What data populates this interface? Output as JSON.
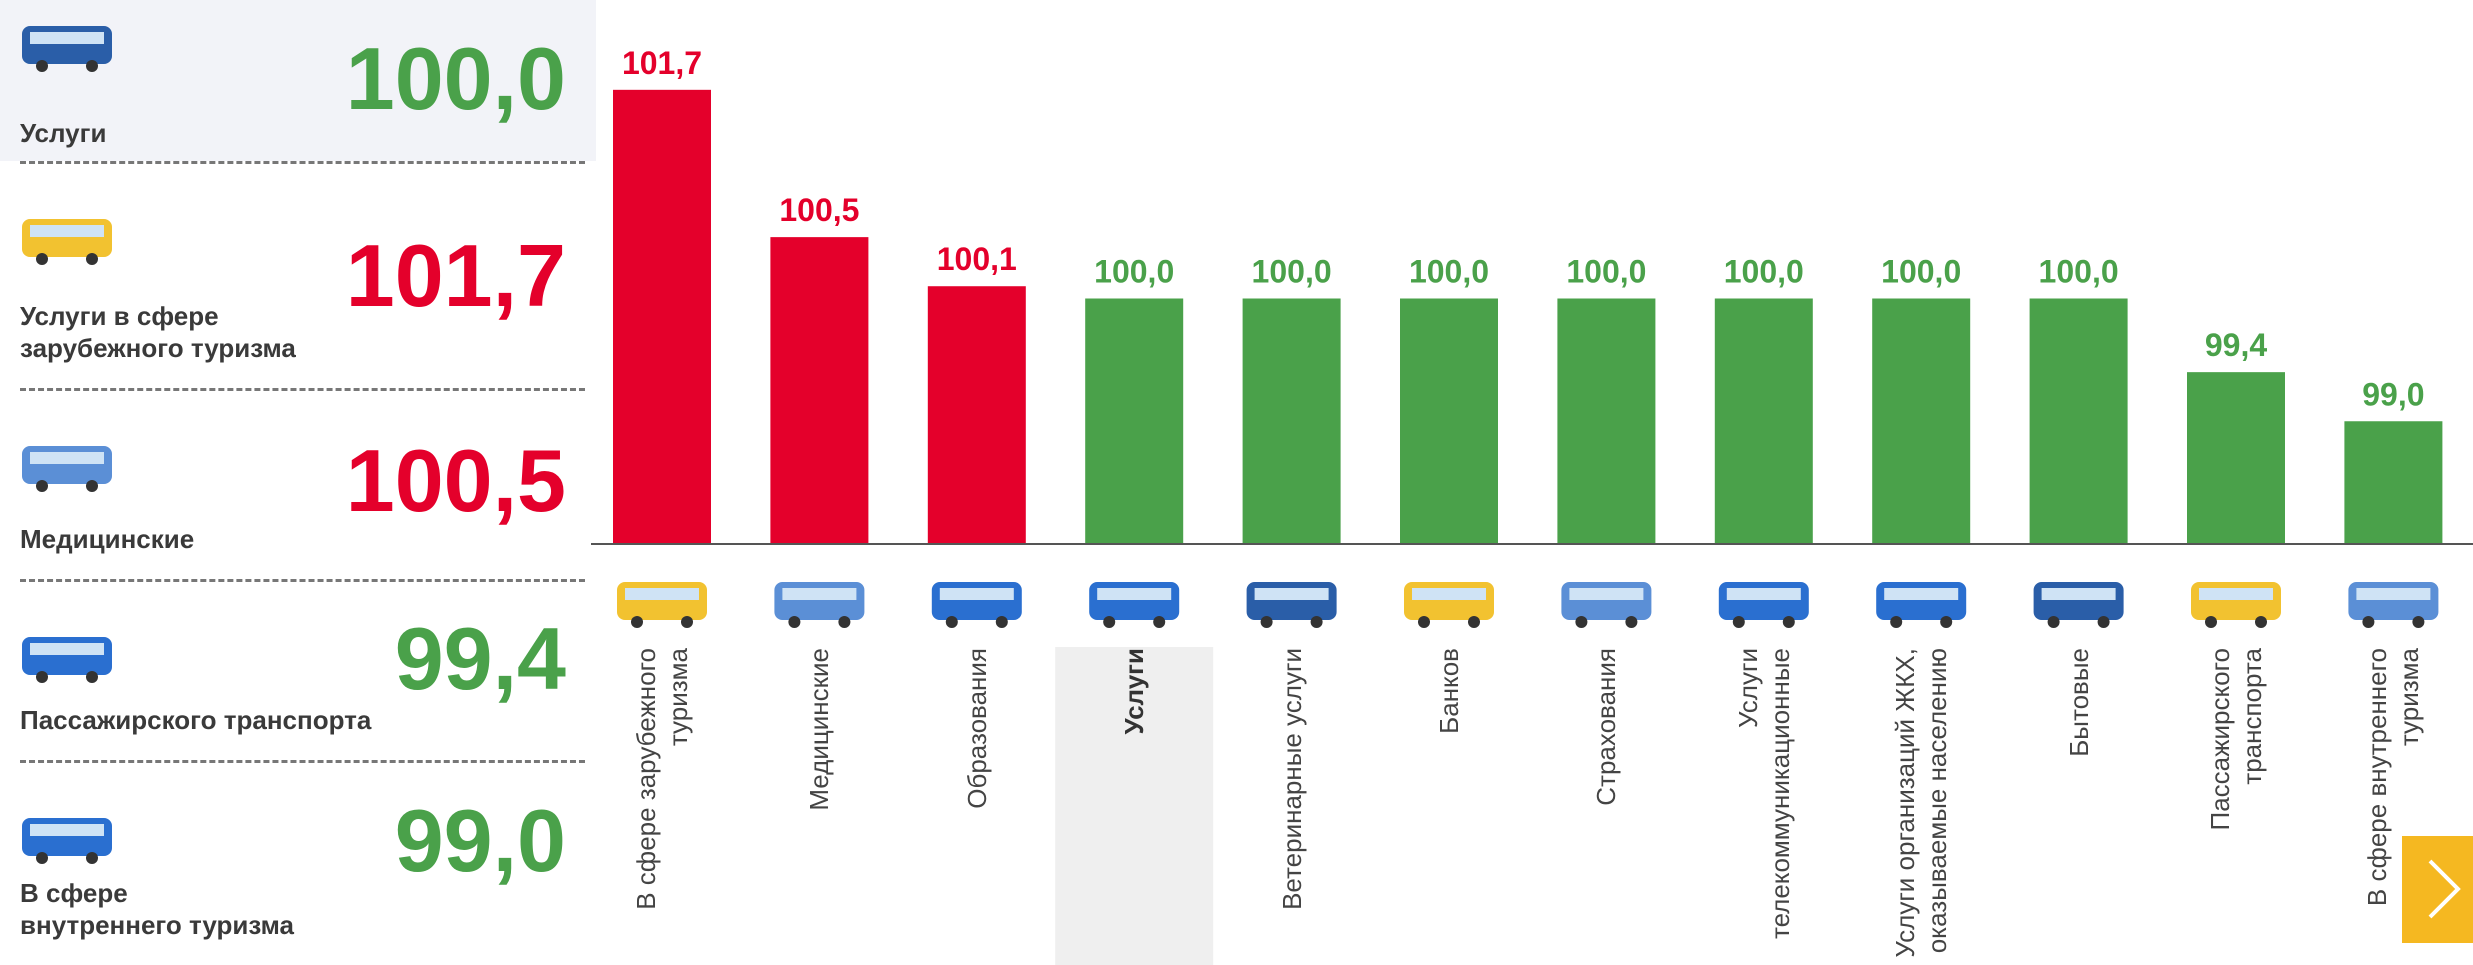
{
  "summary": [
    {
      "label_lines": [
        "Услуги"
      ],
      "value": "100,0",
      "color": "#4aa14a"
    },
    {
      "label_lines": [
        "Услуги в сфере",
        "зарубежного туризма"
      ],
      "value": "101,7",
      "color": "#e4002b"
    },
    {
      "label_lines": [
        "Медицинские"
      ],
      "value": "100,5",
      "color": "#e4002b"
    },
    {
      "label_lines": [
        "Пассажирского транспорта"
      ],
      "value": "99,4",
      "color": "#4aa14a"
    },
    {
      "label_lines": [
        "В сфере",
        "внутреннего туризма"
      ],
      "value": "99,0",
      "color": "#4aa14a"
    }
  ],
  "chart_data": {
    "type": "bar",
    "categories": [
      "В сфере зарубежного туризма",
      "Медицинские",
      "Образования",
      "Услуги",
      "Ветеринарные услуги",
      "Банков",
      "Страхования",
      "Услуги телекоммуникационные",
      "Услуги организаций ЖКХ, оказываемые населению",
      "Бытовые",
      "Пассажирского транспорта",
      "В сфере внутреннего туризма"
    ],
    "values": [
      101.7,
      100.5,
      100.1,
      100.0,
      100.0,
      100.0,
      100.0,
      100.0,
      100.0,
      100.0,
      99.4,
      99.0
    ],
    "value_labels": [
      "101,7",
      "100,5",
      "100,1",
      "100,0",
      "100,0",
      "100,0",
      "100,0",
      "100,0",
      "100,0",
      "100,0",
      "99,4",
      "99,0"
    ],
    "colors": [
      "#e4002b",
      "#e4002b",
      "#e4002b",
      "#4aa14a",
      "#4aa14a",
      "#4aa14a",
      "#4aa14a",
      "#4aa14a",
      "#4aa14a",
      "#4aa14a",
      "#4aa14a",
      "#4aa14a"
    ],
    "ylim": [
      98,
      102
    ],
    "highlight": 3
  }
}
